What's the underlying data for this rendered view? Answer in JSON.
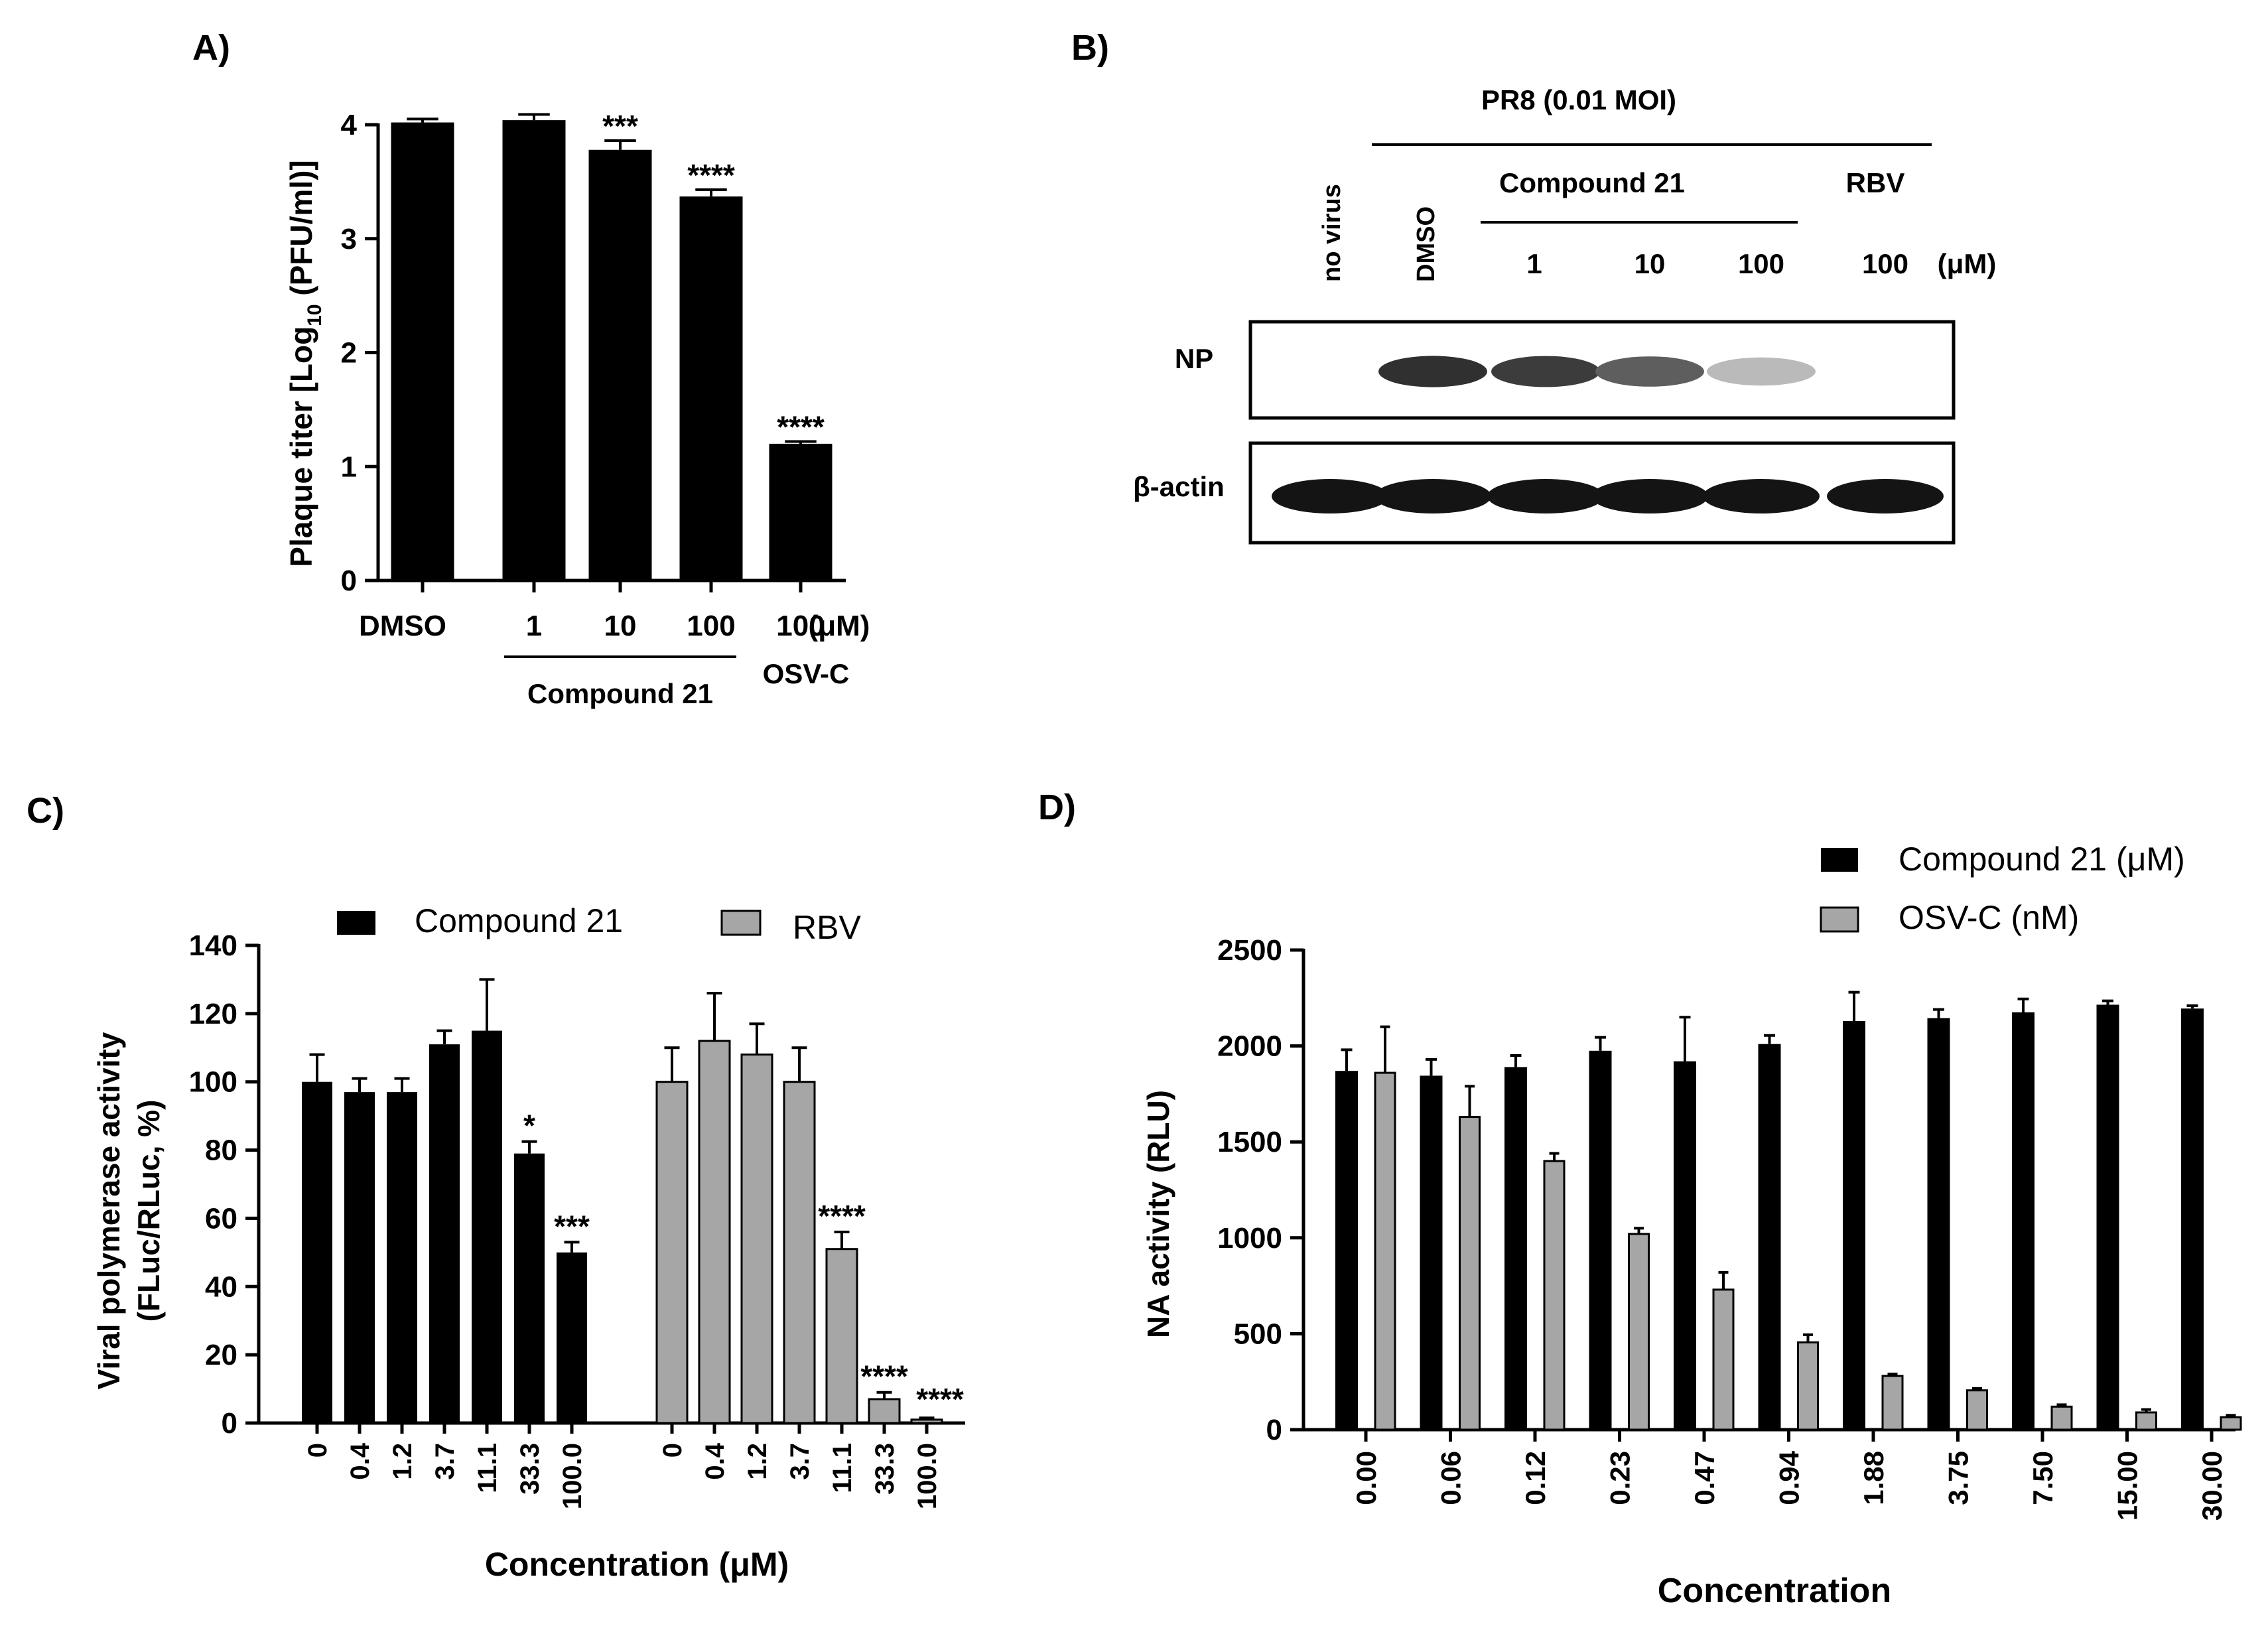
{
  "panels": {
    "A": "A)",
    "B": "B)",
    "C": "C)",
    "D": "D)"
  },
  "chart_data": [
    {
      "id": "A",
      "type": "bar",
      "ylabel_main": "Plaque titer [Log",
      "ylabel_sub": "10",
      "ylabel_tail": " (PFU/ml)]",
      "ylim": [
        0,
        4
      ],
      "yticks": [
        "0",
        "1",
        "2",
        "3",
        "4"
      ],
      "categories": [
        "DMSO",
        "1",
        "10",
        "100",
        "100"
      ],
      "unit": "(μM)",
      "values": [
        4.02,
        4.04,
        3.78,
        3.37,
        1.2
      ],
      "errors": [
        0.03,
        0.05,
        0.08,
        0.06,
        0.02
      ],
      "significance": [
        "",
        "",
        "***",
        "****",
        "****"
      ],
      "group_labels": [
        "Compound 21",
        "OSV-C"
      ],
      "bar_color": "#000000"
    },
    {
      "id": "C",
      "type": "bar",
      "ylabel": [
        "Viral polymerase activity",
        "(FLuc/RLuc, %)"
      ],
      "xlabel": "Concentration (μM)",
      "ylim": [
        0,
        140
      ],
      "yticks": [
        "0",
        "20",
        "40",
        "60",
        "80",
        "100",
        "120",
        "140"
      ],
      "categories": [
        "0",
        "0.4",
        "1.2",
        "3.7",
        "11.1",
        "33.3",
        "100.0"
      ],
      "series": [
        {
          "name": "Compound 21",
          "color": "#000000",
          "values": [
            100,
            97,
            97,
            111,
            115,
            79,
            50
          ],
          "errors": [
            8,
            4,
            4,
            4,
            15,
            3.5,
            3
          ],
          "significance": [
            "",
            "",
            "",
            "",
            "",
            "*",
            "***"
          ]
        },
        {
          "name": "RBV",
          "color": "#a6a6a6",
          "values": [
            100,
            112,
            108,
            100,
            51,
            7,
            1
          ],
          "errors": [
            10,
            14,
            9,
            10,
            5,
            2,
            0.5
          ],
          "significance": [
            "",
            "",
            "",
            "",
            "****",
            "****",
            "****"
          ]
        }
      ]
    },
    {
      "id": "D",
      "type": "bar",
      "ylabel": "NA activity (RLU)",
      "xlabel": "Concentration",
      "ylim": [
        0,
        2500
      ],
      "yticks": [
        "0",
        "500",
        "1000",
        "1500",
        "2000",
        "2500"
      ],
      "categories": [
        "0.00",
        "0.06",
        "0.12",
        "0.23",
        "0.47",
        "0.94",
        "1.88",
        "3.75",
        "7.50",
        "15.00",
        "30.00"
      ],
      "series": [
        {
          "name": "Compound 21 (μM)",
          "color": "#000000",
          "values": [
            1870,
            1845,
            1890,
            1975,
            1920,
            2010,
            2130,
            2145,
            2175,
            2215,
            2195
          ],
          "errors": [
            110,
            85,
            60,
            70,
            230,
            45,
            150,
            45,
            70,
            20,
            15
          ]
        },
        {
          "name": "OSV-C (nM)",
          "color": "#a6a6a6",
          "values": [
            1860,
            1630,
            1400,
            1020,
            730,
            455,
            280,
            205,
            120,
            90,
            65
          ],
          "errors": [
            240,
            160,
            40,
            30,
            90,
            40,
            10,
            10,
            10,
            15,
            10
          ]
        }
      ]
    }
  ],
  "western": {
    "header": "PR8 (0.01 MOI)",
    "columns": [
      "no virus",
      "DMSO"
    ],
    "compound_label": "Compound 21",
    "rbv_label": "RBV",
    "doses": [
      "1",
      "10",
      "100",
      "100"
    ],
    "unit": "(μM)",
    "rows": [
      "NP",
      "β-actin"
    ],
    "np_intensity": [
      0,
      0.9,
      0.85,
      0.7,
      0.3,
      0
    ],
    "actin_intensity": [
      1,
      1,
      1,
      1,
      1,
      1
    ]
  }
}
